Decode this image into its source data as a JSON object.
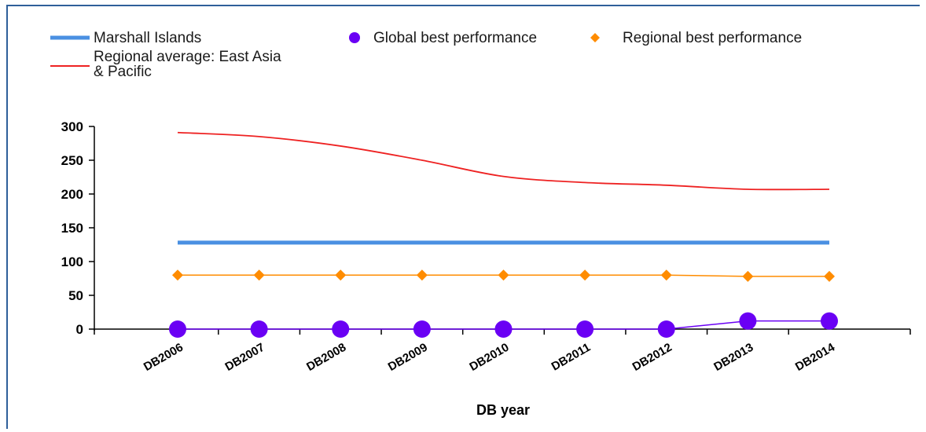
{
  "chart_data": {
    "type": "line",
    "title": "",
    "xlabel": "DB year",
    "ylabel": "",
    "categories": [
      "DB2006",
      "DB2007",
      "DB2008",
      "DB2009",
      "DB2010",
      "DB2011",
      "DB2012",
      "DB2013",
      "DB2014"
    ],
    "ylim": [
      0,
      300
    ],
    "yticks": [
      0,
      50,
      100,
      150,
      200,
      250,
      300
    ],
    "grid": false,
    "legend_position": "top",
    "series": [
      {
        "name": "Marshall Islands",
        "color": "#4a90e2",
        "marker": "none",
        "values": [
          128,
          128,
          128,
          128,
          128,
          128,
          128,
          128,
          128
        ]
      },
      {
        "name": "Global best performance",
        "color": "#6a00f4",
        "marker": "circle",
        "values": [
          0,
          0,
          0,
          0,
          0,
          0,
          0,
          12,
          12
        ]
      },
      {
        "name": "Regional best performance",
        "color": "#ff8c00",
        "marker": "diamond",
        "values": [
          80,
          80,
          80,
          80,
          80,
          80,
          80,
          78,
          78
        ]
      },
      {
        "name": "Regional average: East Asia & Pacific",
        "color": "#ee2222",
        "marker": "none",
        "values": [
          291,
          285,
          271,
          250,
          226,
          217,
          213,
          207,
          207
        ]
      }
    ]
  }
}
